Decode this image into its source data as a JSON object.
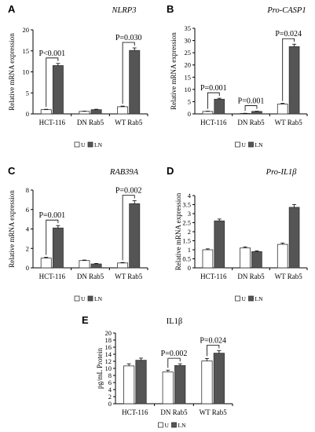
{
  "colors": {
    "unstimulated": "#ffffff",
    "ln": "#555555",
    "axis": "#000000"
  },
  "legend": {
    "u": "U",
    "ln": "LN"
  },
  "chart_data": [
    {
      "letter": "A",
      "title": "NLRP3",
      "type": "bar",
      "ylabel": "Relative mRNA expression",
      "categories": [
        "HCT-116",
        "DN Rab5",
        "WT Rab5"
      ],
      "series": [
        {
          "name": "U",
          "values": [
            1.0,
            0.6,
            1.7
          ],
          "errors": [
            0.1,
            0.05,
            0.15
          ]
        },
        {
          "name": "LN",
          "values": [
            11.5,
            1.0,
            15.1
          ],
          "errors": [
            0.5,
            0.1,
            0.6
          ]
        }
      ],
      "ylim": [
        0,
        20
      ],
      "yticks": [
        "0",
        "5",
        "10",
        "15",
        "20"
      ],
      "pvalues": [
        {
          "cat": 0,
          "label": "P<0.001"
        },
        {
          "cat": 2,
          "label": "P=0.030"
        }
      ]
    },
    {
      "letter": "B",
      "title": "Pro-CASP1",
      "type": "bar",
      "ylabel": "Relative mRNA expression",
      "categories": [
        "HCT-116",
        "DN Rab5",
        "WT Rab5"
      ],
      "series": [
        {
          "name": "U",
          "values": [
            1.0,
            0.2,
            4.0
          ],
          "errors": [
            0.1,
            0.05,
            0.3
          ]
        },
        {
          "name": "LN",
          "values": [
            6.0,
            1.0,
            27.5
          ],
          "errors": [
            0.4,
            0.1,
            1.0
          ]
        }
      ],
      "ylim": [
        0,
        35
      ],
      "yticks": [
        "0",
        "5",
        "10",
        "15",
        "20",
        "25",
        "30",
        "35"
      ],
      "pvalues": [
        {
          "cat": 0,
          "label": "P=0.001"
        },
        {
          "cat": 1,
          "label": "P=0.001"
        },
        {
          "cat": 2,
          "label": "P=0.024"
        }
      ]
    },
    {
      "letter": "C",
      "title": "RAB39A",
      "type": "bar",
      "ylabel": "Relative mRNA expression",
      "categories": [
        "HCT-116",
        "DN Rab5",
        "WT Rab5"
      ],
      "series": [
        {
          "name": "U",
          "values": [
            1.0,
            0.75,
            0.5
          ],
          "errors": [
            0.08,
            0.05,
            0.05
          ]
        },
        {
          "name": "LN",
          "values": [
            4.1,
            0.4,
            6.6
          ],
          "errors": [
            0.25,
            0.05,
            0.3
          ]
        }
      ],
      "ylim": [
        0,
        8
      ],
      "yticks": [
        "0",
        "2",
        "4",
        "6",
        "8"
      ],
      "pvalues": [
        {
          "cat": 0,
          "label": "P=0.001"
        },
        {
          "cat": 2,
          "label": "P=0.002"
        }
      ]
    },
    {
      "letter": "D",
      "title": "Pro-IL1β",
      "type": "bar",
      "ylabel": "Relative mRNA expression",
      "categories": [
        "HCT-116",
        "DN Rab5",
        "WT Rab5"
      ],
      "series": [
        {
          "name": "U",
          "values": [
            1.0,
            1.1,
            1.3
          ],
          "errors": [
            0.05,
            0.06,
            0.07
          ]
        },
        {
          "name": "LN",
          "values": [
            2.6,
            0.9,
            3.35
          ],
          "errors": [
            0.1,
            0.04,
            0.15
          ]
        }
      ],
      "ylim": [
        0,
        4
      ],
      "yticks": [
        "0",
        "0.5",
        "1",
        "1.5",
        "2",
        "2.5",
        "3",
        "3.5",
        "4"
      ],
      "pvalues": []
    },
    {
      "letter": "E",
      "title": "IL1β",
      "type": "bar",
      "ylabel": "pg/mL Protein",
      "categories": [
        "HCT-116",
        "DN Rab5",
        "WT Rab5"
      ],
      "series": [
        {
          "name": "U",
          "values": [
            10.7,
            9.0,
            12.1
          ],
          "errors": [
            0.6,
            0.5,
            0.7
          ]
        },
        {
          "name": "LN",
          "values": [
            12.3,
            10.8,
            14.3
          ],
          "errors": [
            0.6,
            0.5,
            0.7
          ]
        }
      ],
      "ylim": [
        0,
        20
      ],
      "yticks": [
        "0",
        "2",
        "4",
        "6",
        "8",
        "10",
        "12",
        "14",
        "16",
        "18",
        "20"
      ],
      "pvalues": [
        {
          "cat": 1,
          "label": "P=0.002"
        },
        {
          "cat": 2,
          "label": "P=0.024"
        }
      ]
    }
  ]
}
